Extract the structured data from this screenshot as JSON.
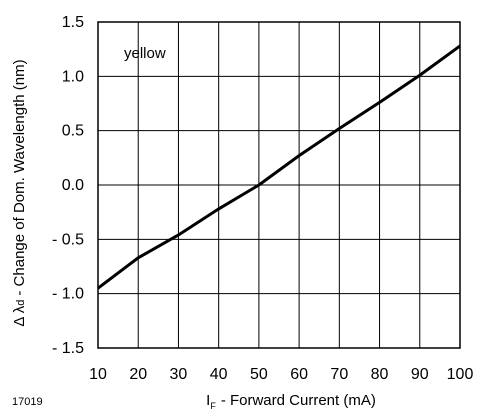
{
  "chart_data": {
    "type": "line",
    "xlim": [
      10,
      100
    ],
    "ylim": [
      -1.5,
      1.5
    ],
    "x_ticks": [
      10,
      20,
      30,
      40,
      50,
      60,
      70,
      80,
      90,
      100
    ],
    "y_ticks": [
      1.5,
      1.0,
      0.5,
      0.0,
      -0.5,
      -1.0,
      -1.5
    ],
    "y_tick_labels": [
      "1.5",
      "1.0",
      "0.5",
      "0.0",
      "- 0.5",
      "- 1.0",
      "- 1.5"
    ],
    "grid": true,
    "series": [
      {
        "name": "yellow",
        "x": [
          10,
          20,
          30,
          40,
          50,
          60,
          70,
          80,
          90,
          100
        ],
        "y": [
          -0.95,
          -0.67,
          -0.46,
          -0.22,
          0.0,
          0.27,
          0.52,
          0.76,
          1.01,
          1.28
        ]
      }
    ],
    "ylabel_delta": "Δ λ",
    "ylabel_sub": "d",
    "ylabel_rest": "- Change of Dom. Wavelength (nm)",
    "xlabel_main": "I",
    "xlabel_sub": "F",
    "xlabel_rest": "- Forward Current (mA)",
    "figure_id": "17019"
  }
}
